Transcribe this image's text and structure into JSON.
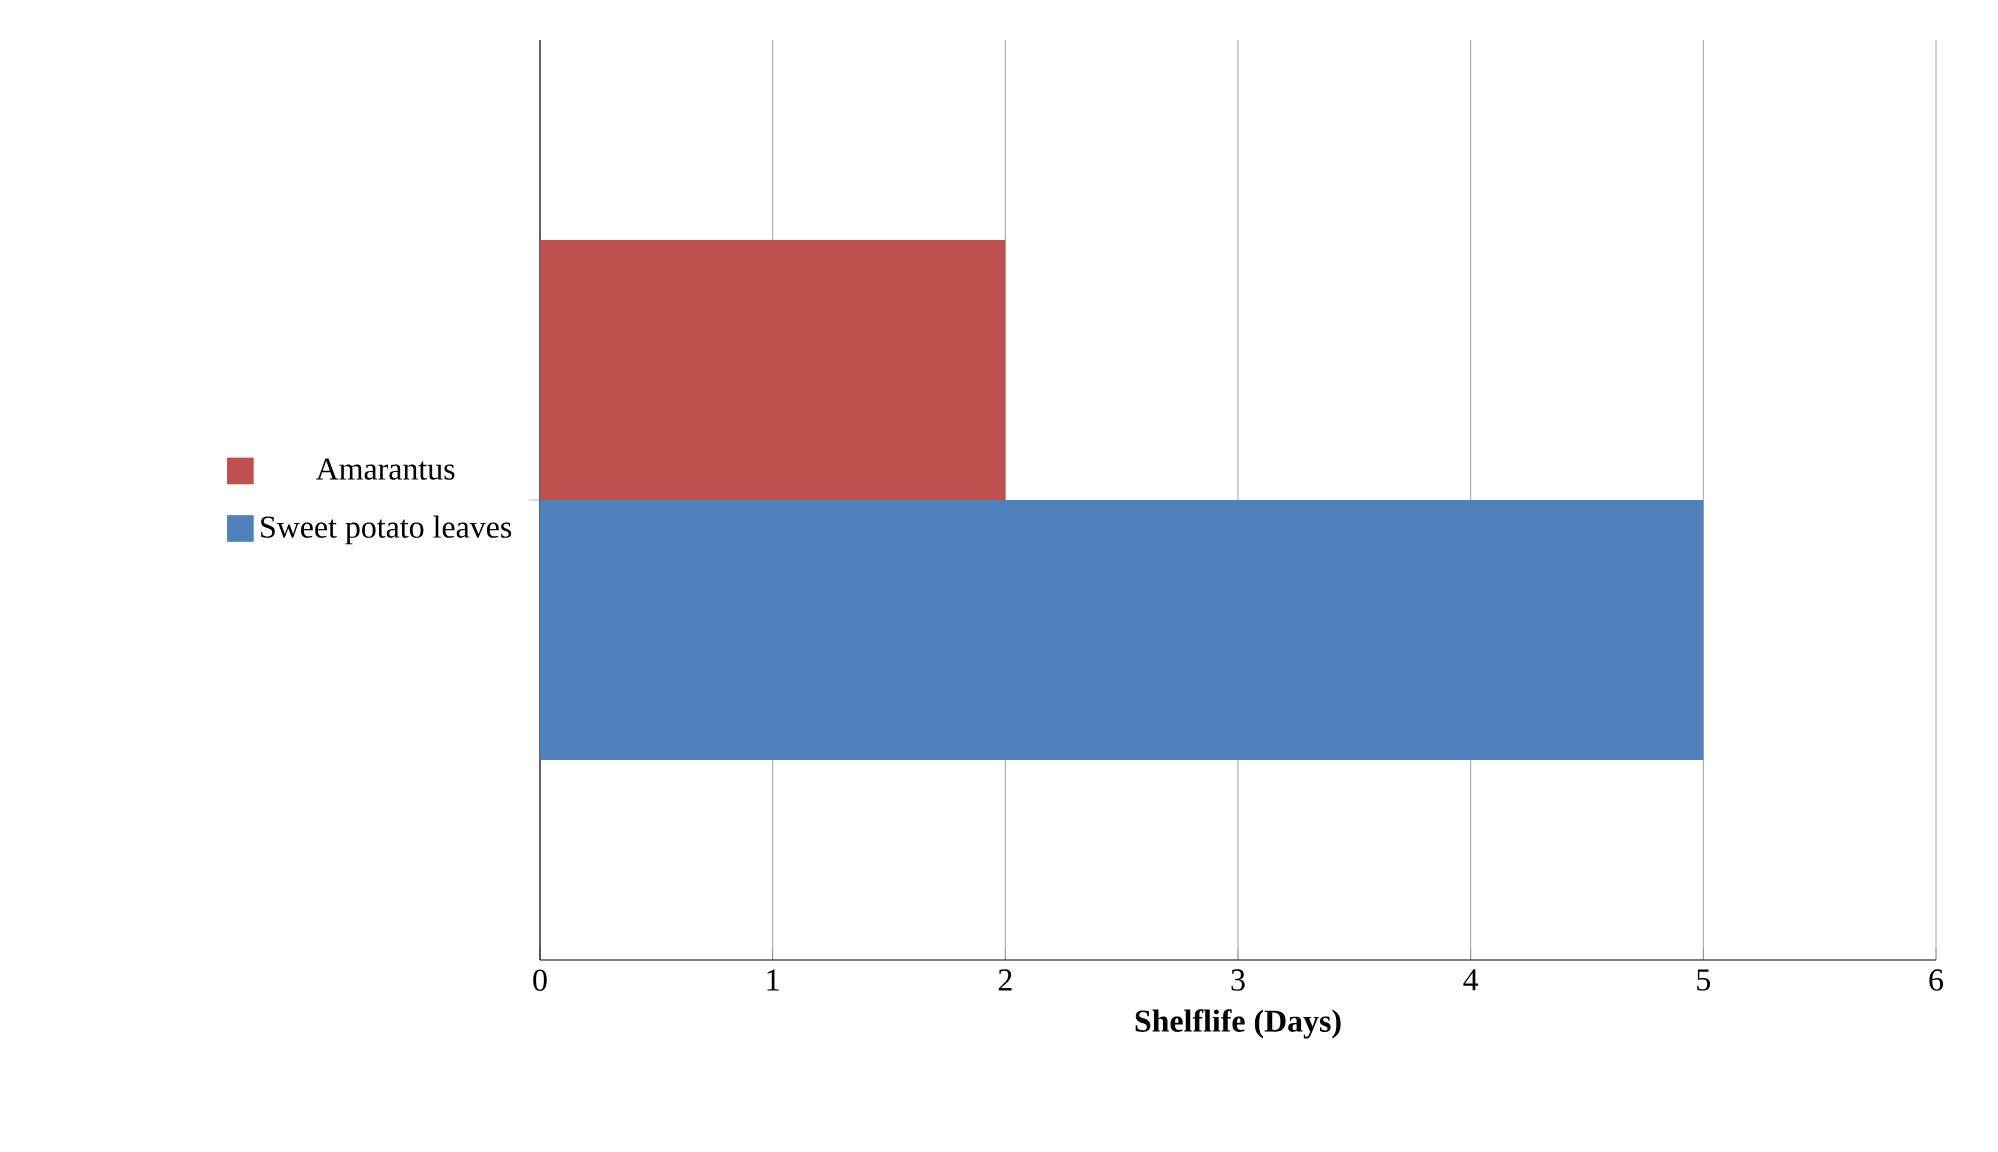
{
  "chart_data": {
    "type": "bar",
    "orientation": "horizontal",
    "xlabel": "Shelflife (Days)",
    "categories": [
      null
    ],
    "series": [
      {
        "name": "Amarantus",
        "color": "#c0504d",
        "values": [
          2
        ]
      },
      {
        "name": "Sweet potato leaves",
        "color": "#4f81bd",
        "values": [
          5
        ]
      }
    ],
    "xlim": [
      0,
      6
    ],
    "xticks": [
      0,
      1,
      2,
      3,
      4,
      5,
      6
    ],
    "grid": "x",
    "legend": "left"
  }
}
